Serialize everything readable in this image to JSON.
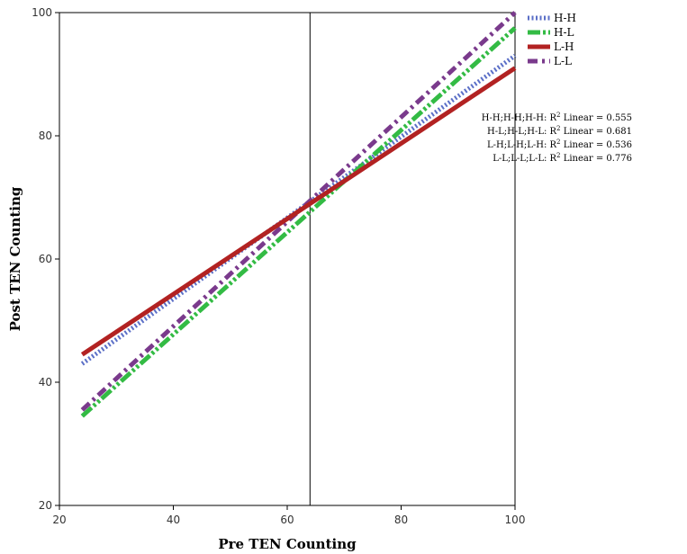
{
  "chart_data": {
    "type": "line",
    "xlabel": "Pre TEN Counting",
    "ylabel": "Post TEN Counting",
    "xlim": [
      20,
      100
    ],
    "ylim": [
      20,
      100
    ],
    "x_ticks": [
      "20",
      "40",
      "60",
      "80",
      "100"
    ],
    "y_ticks": [
      "20",
      "40",
      "60",
      "80",
      "100"
    ],
    "reference_line_x": 64,
    "grid": false,
    "legend_position": "top-right",
    "series": [
      {
        "name": "H-H",
        "x": [
          24,
          100
        ],
        "y": [
          43,
          93
        ],
        "color": "#5b6fc7",
        "style": "dotted"
      },
      {
        "name": "H-L",
        "x": [
          24,
          100
        ],
        "y": [
          34.5,
          97.5
        ],
        "color": "#33bb44",
        "style": "dash-dot-dot"
      },
      {
        "name": "L-H",
        "x": [
          24,
          100
        ],
        "y": [
          44.5,
          91
        ],
        "color": "#b22222",
        "style": "solid"
      },
      {
        "name": "L-L",
        "x": [
          24,
          100
        ],
        "y": [
          35.5,
          100
        ],
        "color": "#7a3a8c",
        "style": "dash-dot"
      }
    ],
    "fit_labels": [
      {
        "prefix": "H-H;H-H;H-H: R",
        "sup": "2",
        "suffix": " Linear = 0.555"
      },
      {
        "prefix": "H-L;H-L;H-L: R",
        "sup": "2",
        "suffix": " Linear = 0.681"
      },
      {
        "prefix": "L-H;L-H;L-H: R",
        "sup": "2",
        "suffix": " Linear = 0.536"
      },
      {
        "prefix": "L-L;L-L;L-L: R",
        "sup": "2",
        "suffix": " Linear = 0.776"
      }
    ]
  }
}
